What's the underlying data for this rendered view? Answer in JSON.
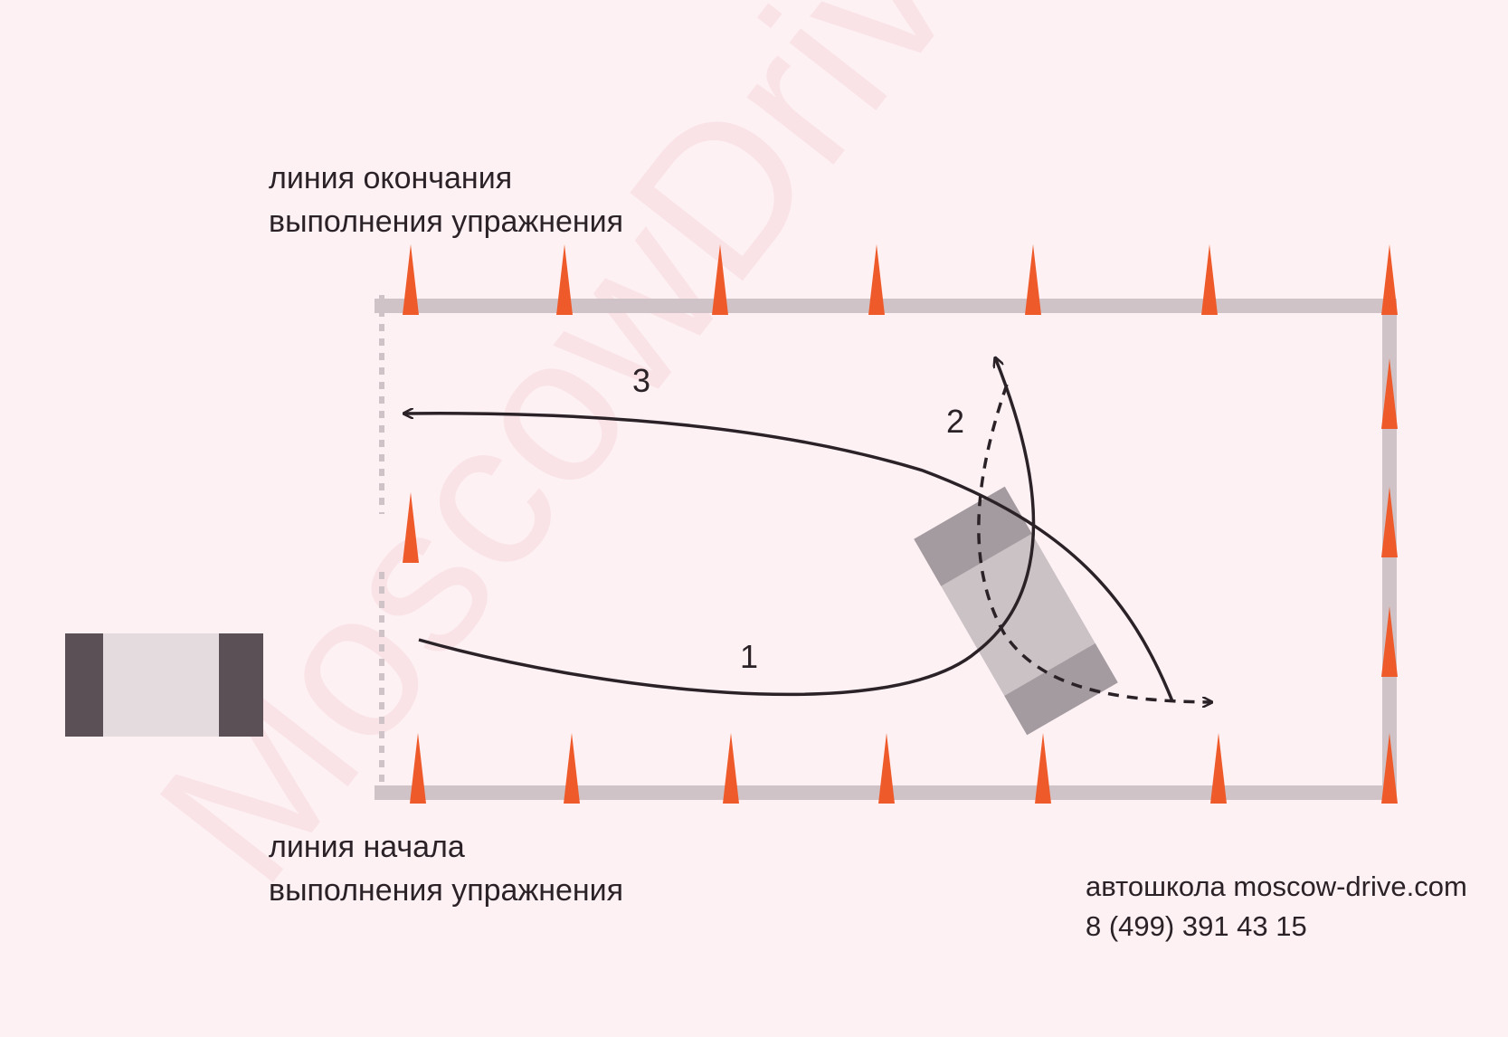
{
  "labels": {
    "end_line_1": "линия окончания",
    "end_line_2": "выполнения упражнения",
    "start_line_1": "линия начала",
    "start_line_2": "выполнения упражнения"
  },
  "paths": [
    {
      "number": "1",
      "style": "solid"
    },
    {
      "number": "2",
      "style": "dashed"
    },
    {
      "number": "3",
      "style": "solid"
    }
  ],
  "watermark": "MoscowDrive",
  "footer": {
    "school": "автошкола moscow-drive.com",
    "phone": "8 (499) 391 43 15"
  },
  "colors": {
    "background": "#fdf1f4",
    "cone": "#ef5a2a",
    "boundary": "#cfc3c8",
    "path": "#2a2226",
    "car_dark": "#5a5055",
    "car_light": "#e4dbdf",
    "car_gray_dark": "#a39b9f",
    "car_gray_light": "#cbc2c6"
  }
}
